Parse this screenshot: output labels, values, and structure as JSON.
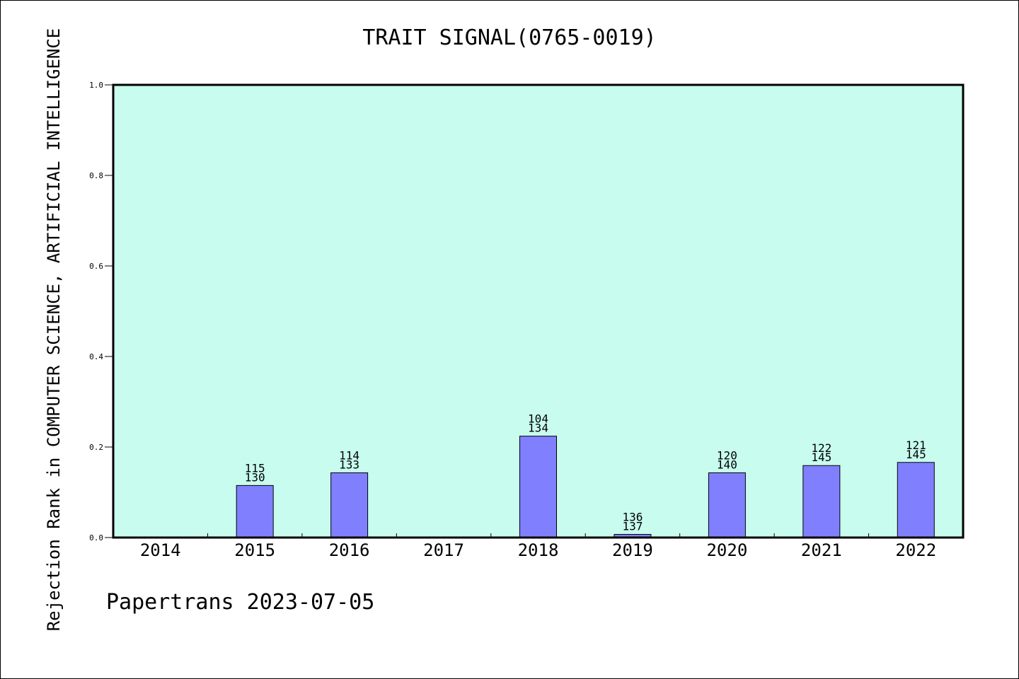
{
  "title": "TRAIT SIGNAL(0765-0019)",
  "footer": "Papertrans 2023-07-05",
  "colors": {
    "plot_background": "#c8fcee",
    "bar_fill": "#8080ff",
    "bar_stroke": "#000000",
    "axis": "#000000"
  },
  "chart_data": {
    "type": "bar",
    "title": "TRAIT SIGNAL(0765-0019)",
    "xlabel": "",
    "ylabel": "Rejection Rank in COMPUTER SCIENCE, ARTIFICIAL INTELLIGENCE",
    "ylim": [
      0,
      1.0
    ],
    "yticks": [
      "0.0",
      "0.2",
      "0.4",
      "0.6",
      "0.8",
      "1.0"
    ],
    "grid": false,
    "categories": [
      "2014",
      "2015",
      "2016",
      "2017",
      "2018",
      "2019",
      "2020",
      "2021",
      "2022"
    ],
    "values": [
      null,
      0.115,
      0.143,
      null,
      0.224,
      0.007,
      0.143,
      0.159,
      0.166
    ],
    "labels_top": [
      "",
      "115",
      "114",
      "",
      "104",
      "136",
      "120",
      "122",
      "121"
    ],
    "labels_bottom": [
      "",
      "130",
      "133",
      "",
      "134",
      "137",
      "140",
      "145",
      "145"
    ]
  }
}
